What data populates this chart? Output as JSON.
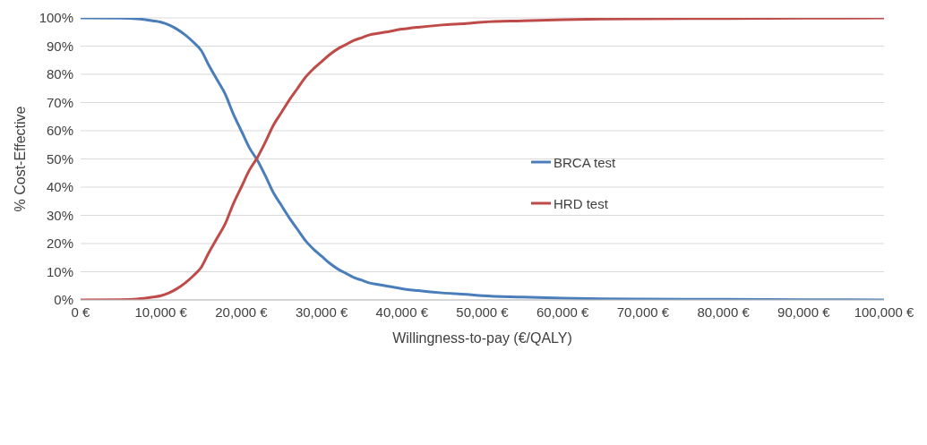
{
  "chart_data": {
    "type": "line",
    "xlabel": "Willingness-to-pay (€/QALY)",
    "ylabel": "% Cost-Effective",
    "x": [
      0,
      5000,
      7000,
      9000,
      10000,
      11000,
      12000,
      13000,
      14000,
      15000,
      16000,
      17000,
      18000,
      19000,
      20000,
      21000,
      22000,
      23000,
      24000,
      25000,
      26000,
      27000,
      28000,
      29000,
      30000,
      31000,
      32000,
      33000,
      34000,
      35000,
      36000,
      37000,
      38000,
      40000,
      42000,
      45000,
      48000,
      50000,
      55000,
      60000,
      65000,
      70000,
      80000,
      90000,
      100000
    ],
    "series": [
      {
        "name": "BRCA test",
        "color": "#4a7ebb",
        "values": [
          100,
          99.9,
          99.7,
          99,
          98.5,
          97.5,
          96,
          94,
          91.5,
          88.5,
          83,
          78,
          73,
          66,
          60,
          54,
          49.5,
          44,
          38,
          33.5,
          29,
          25,
          21,
          18,
          15.5,
          13,
          11,
          9.5,
          8,
          7,
          6,
          5.5,
          5,
          4,
          3.3,
          2.5,
          2,
          1.5,
          1,
          0.6,
          0.4,
          0.3,
          0.2,
          0.1,
          0
        ]
      },
      {
        "name": "HRD test",
        "color": "#be4b48",
        "values": [
          0,
          0.1,
          0.3,
          1,
          1.5,
          2.5,
          4,
          6,
          8.5,
          11.5,
          17,
          22,
          27,
          34,
          40,
          46,
          50.5,
          56,
          62,
          66.5,
          71,
          75,
          79,
          82,
          84.5,
          87,
          89,
          90.5,
          92,
          93,
          94,
          94.5,
          95,
          96,
          96.7,
          97.5,
          98,
          98.5,
          99,
          99.4,
          99.6,
          99.7,
          99.8,
          99.9,
          100
        ]
      }
    ],
    "xlim": [
      0,
      100000
    ],
    "xticks": [
      {
        "value": 0,
        "label": "0 €"
      },
      {
        "value": 10000,
        "label": "10,000 €"
      },
      {
        "value": 20000,
        "label": "20,000 €"
      },
      {
        "value": 30000,
        "label": "30,000 €"
      },
      {
        "value": 40000,
        "label": "40,000 €"
      },
      {
        "value": 50000,
        "label": "50,000 €"
      },
      {
        "value": 60000,
        "label": "60,000 €"
      },
      {
        "value": 70000,
        "label": "70,000 €"
      },
      {
        "value": 80000,
        "label": "80,000 €"
      },
      {
        "value": 90000,
        "label": "90,000 €"
      },
      {
        "value": 100000,
        "label": "100,000 €"
      }
    ],
    "ylim": [
      0,
      100
    ],
    "yticks": [
      {
        "value": 0,
        "label": "0%"
      },
      {
        "value": 10,
        "label": "10%"
      },
      {
        "value": 20,
        "label": "20%"
      },
      {
        "value": 30,
        "label": "30%"
      },
      {
        "value": 40,
        "label": "40%"
      },
      {
        "value": 50,
        "label": "50%"
      },
      {
        "value": 60,
        "label": "60%"
      },
      {
        "value": 70,
        "label": "70%"
      },
      {
        "value": 80,
        "label": "80%"
      },
      {
        "value": 90,
        "label": "90%"
      },
      {
        "value": 100,
        "label": "100%"
      }
    ],
    "grid": "y",
    "legend": "center",
    "marker": "none",
    "line_style": "solid"
  }
}
